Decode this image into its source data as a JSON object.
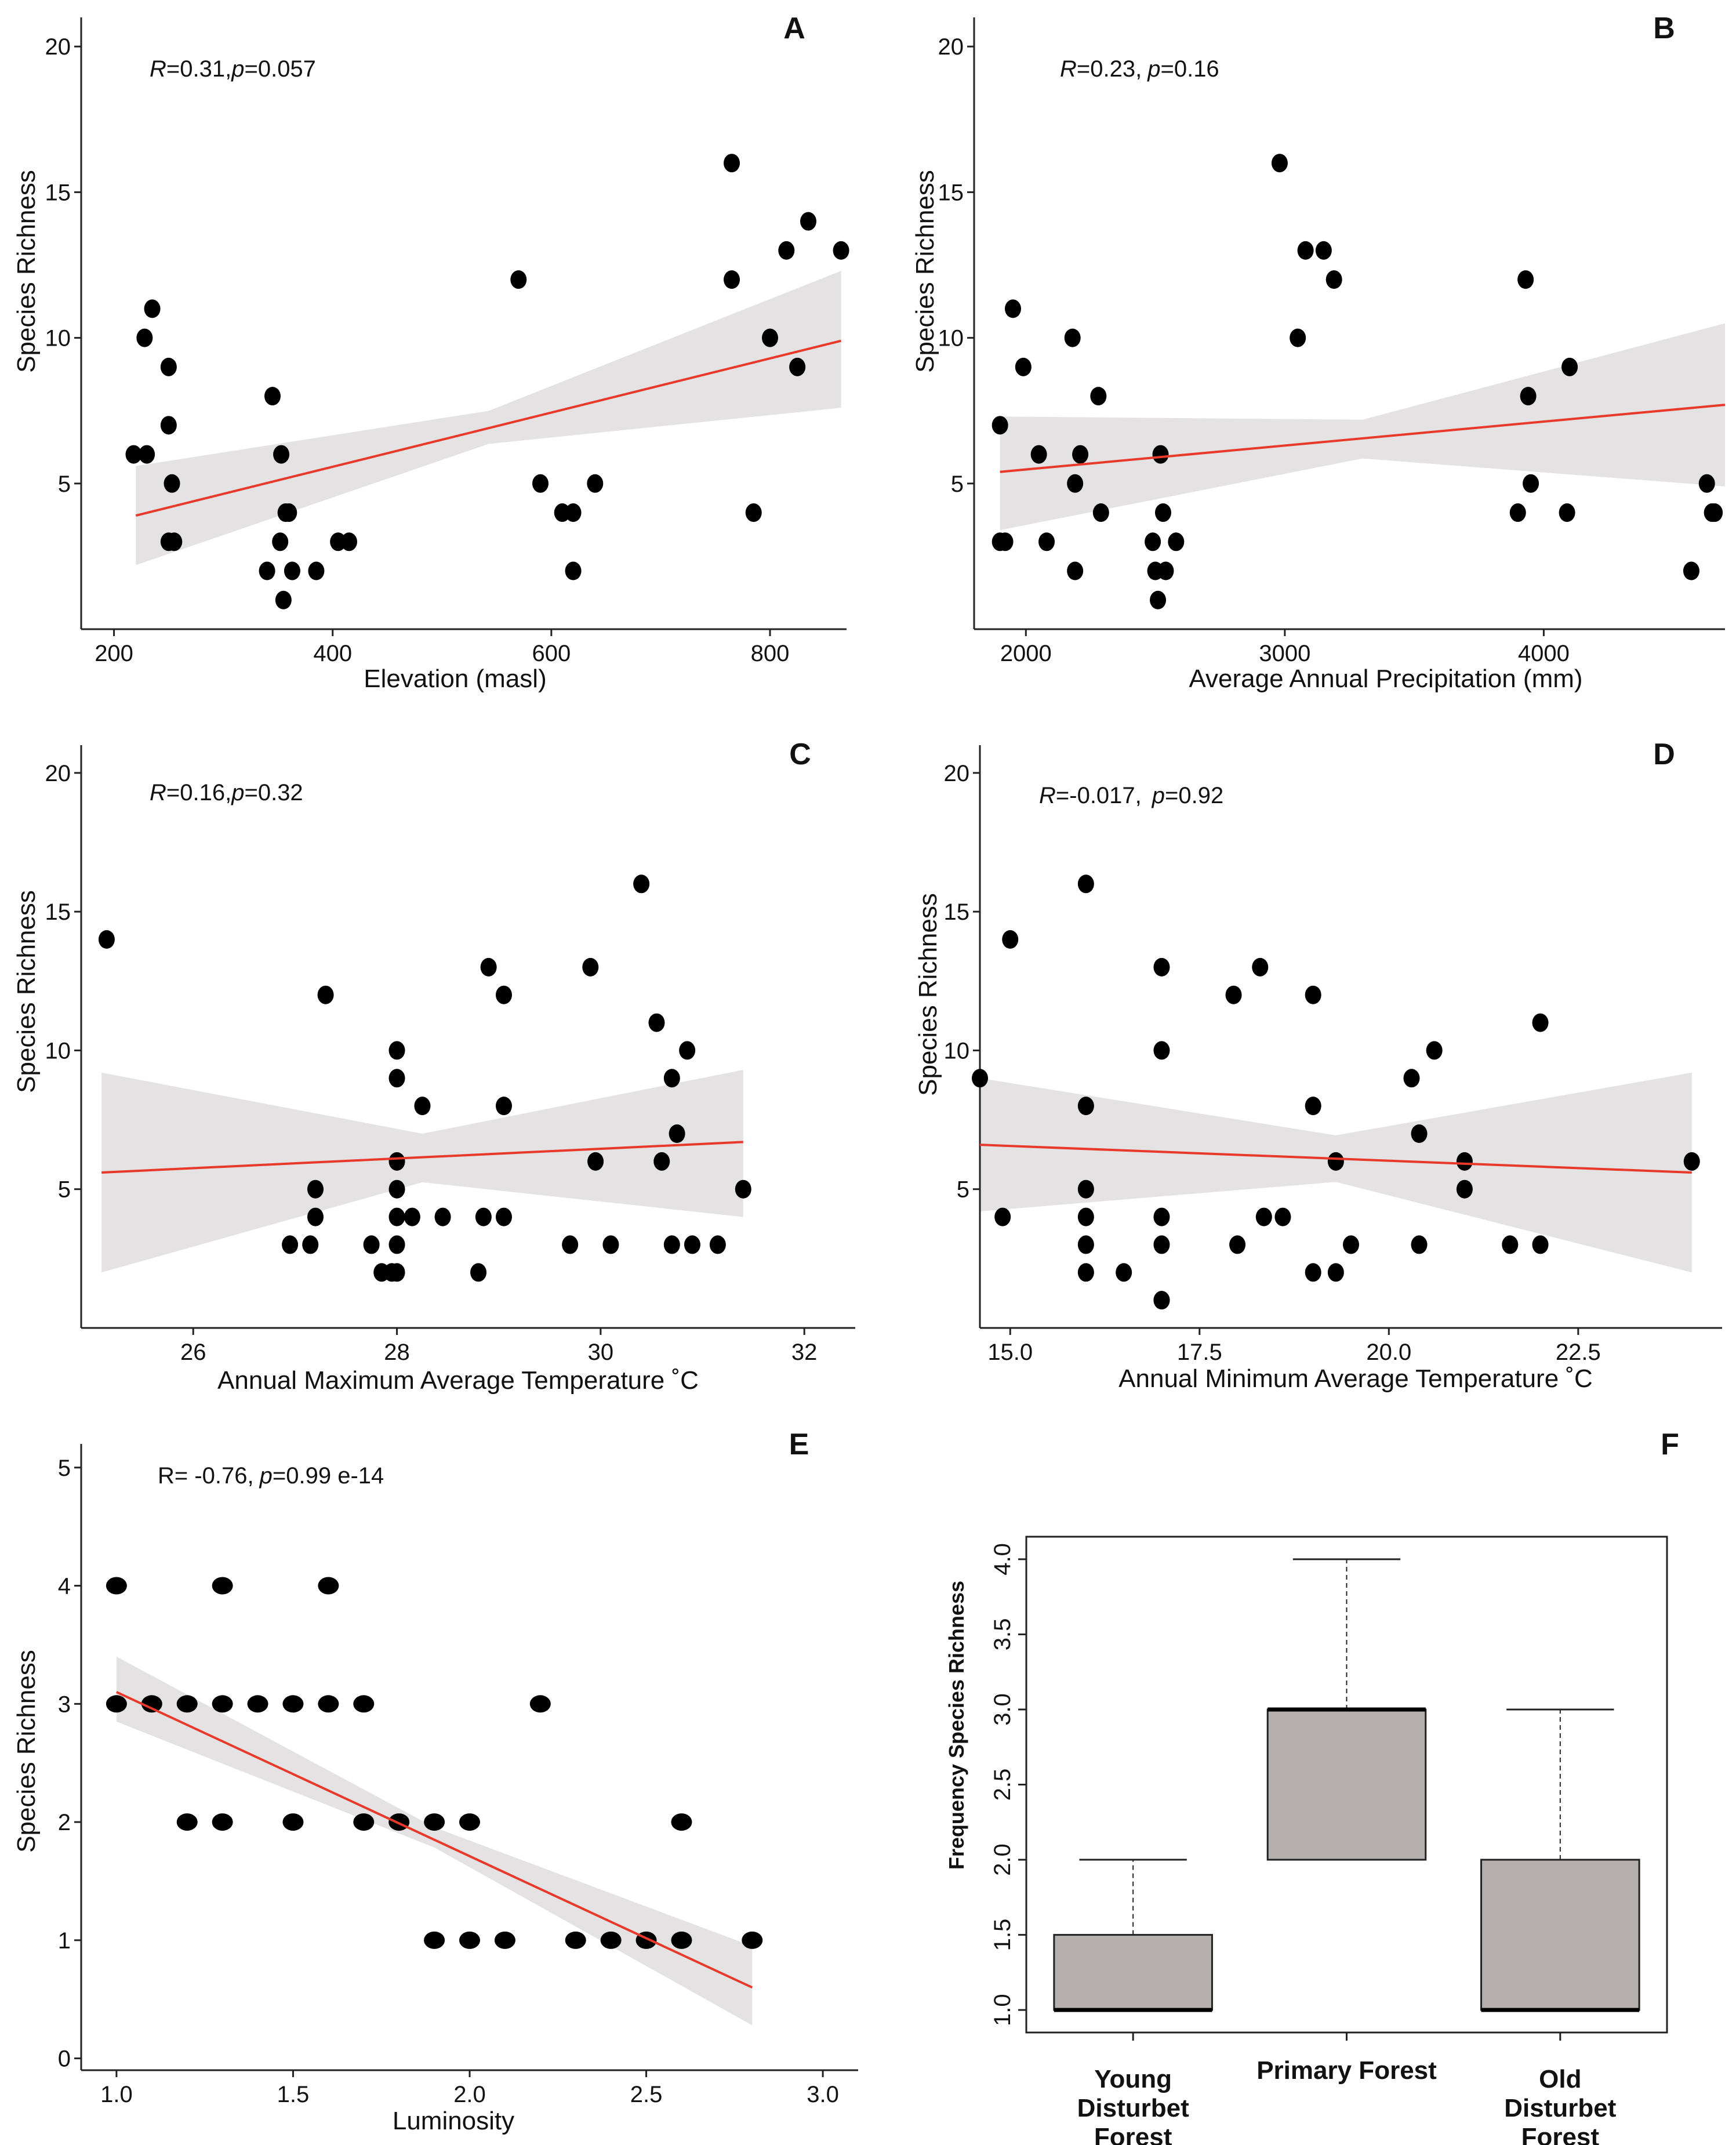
{
  "figure_title": "Species richness vs. environmental variables",
  "colors": {
    "points": "#000000",
    "fit": "#e8392a",
    "band": "#e4e2e2",
    "box_fill": "#b5b0ad",
    "axis": "#222222"
  },
  "chart_data": [
    {
      "id": "A",
      "type": "scatter",
      "letter": "A",
      "stat_r": "R",
      "stat_r_value": "=0.31,",
      "stat_p": "p",
      "stat_p_value": "=0.057",
      "xlabel": "Elevation (masl)",
      "ylabel": "Species Richness",
      "xlim": [
        170,
        870
      ],
      "ylim": [
        0,
        21
      ],
      "xticks": [
        200,
        400,
        600,
        800
      ],
      "yticks": [
        5,
        10,
        15,
        20
      ],
      "x": [
        218,
        230,
        228,
        235,
        250,
        250,
        253,
        250,
        255,
        345,
        353,
        357,
        352,
        360,
        363,
        340,
        355,
        385,
        405,
        415,
        570,
        590,
        610,
        620,
        620,
        640,
        765,
        765,
        785,
        800,
        815,
        835,
        825,
        865
      ],
      "y": [
        6,
        6,
        10,
        11,
        9,
        7,
        5,
        3,
        3,
        8,
        6,
        4,
        3,
        4,
        2,
        2,
        1,
        2,
        3,
        3,
        12,
        5,
        4,
        4,
        2,
        5,
        16,
        12,
        4,
        10,
        13,
        14,
        9,
        13
      ],
      "fit": {
        "x0": 220,
        "y0": 3.9,
        "x1": 865,
        "y1": 9.9,
        "lo0": 2.2,
        "hi0": 5.6,
        "lo1": 7.6,
        "hi1": 12.3
      }
    },
    {
      "id": "B",
      "type": "scatter",
      "letter": "B",
      "stat_r": "R",
      "stat_r_value": "=0.23,",
      "stat_p": "p",
      "stat_p_value": "=0.16",
      "xlabel": "Average Annual Precipitation (mm)",
      "ylabel": "Species Richness",
      "xlim": [
        1800,
        4700
      ],
      "ylim": [
        0,
        21
      ],
      "xticks": [
        2000,
        3000,
        4000
      ],
      "yticks": [
        5,
        10,
        15,
        20
      ],
      "x": [
        1900,
        1900,
        1920,
        1950,
        1990,
        2050,
        2080,
        2180,
        2190,
        2190,
        2210,
        2280,
        2290,
        2490,
        2500,
        2510,
        2520,
        2530,
        2540,
        2580,
        2980,
        3050,
        3080,
        3150,
        3190,
        3900,
        3930,
        3940,
        3950,
        4090,
        4100,
        4570,
        4630,
        4650,
        4660
      ],
      "y": [
        7,
        3,
        3,
        11,
        9,
        6,
        3,
        10,
        5,
        2,
        6,
        8,
        4,
        3,
        2,
        1,
        6,
        4,
        2,
        3,
        16,
        10,
        13,
        13,
        12,
        4,
        12,
        8,
        5,
        4,
        9,
        2,
        5,
        4,
        4
      ],
      "fit": {
        "x0": 1900,
        "y0": 5.4,
        "x1": 4700,
        "y1": 7.7,
        "lo0": 3.4,
        "hi0": 7.3,
        "lo1": 4.9,
        "hi1": 10.5
      }
    },
    {
      "id": "C",
      "type": "scatter",
      "letter": "C",
      "stat_r": "R",
      "stat_r_value": "=0.16,",
      "stat_p": "p",
      "stat_p_value": "=0.32",
      "xlabel": "Annual Maximum Average Temperature ˚C",
      "ylabel": "Species Richness",
      "xlim": [
        24.9,
        32.5
      ],
      "ylim": [
        0,
        21
      ],
      "xticks": [
        26,
        28,
        30,
        32
      ],
      "yticks": [
        5,
        10,
        15,
        20
      ],
      "x": [
        25.15,
        26.95,
        27.15,
        27.2,
        27.2,
        27.3,
        27.75,
        27.85,
        27.95,
        28.0,
        28.0,
        28.0,
        28.0,
        28.0,
        28.0,
        28.0,
        28.15,
        28.25,
        28.45,
        28.8,
        28.85,
        28.9,
        29.05,
        29.05,
        29.05,
        29.7,
        29.9,
        29.95,
        30.1,
        30.4,
        30.55,
        30.6,
        30.7,
        30.7,
        30.75,
        30.85,
        30.9,
        31.15,
        31.4
      ],
      "y": [
        14,
        3,
        3,
        5,
        4,
        12,
        3,
        2,
        2,
        10,
        9,
        6,
        5,
        4,
        3,
        2,
        4,
        8,
        4,
        2,
        4,
        13,
        12,
        8,
        4,
        3,
        13,
        6,
        3,
        16,
        11,
        6,
        3,
        9,
        7,
        10,
        3,
        3,
        5
      ],
      "fit": {
        "x0": 25.1,
        "y0": 5.6,
        "x1": 31.4,
        "y1": 6.7,
        "lo0": 2.0,
        "hi0": 9.2,
        "lo1": 4.0,
        "hi1": 9.3
      }
    },
    {
      "id": "D",
      "type": "scatter",
      "letter": "D",
      "stat_r": "R",
      "stat_r_value": "=-0.017,",
      "stat_p": "p",
      "stat_p_value": "=0.92",
      "xlabel": "Annual Minimum Average Temperature ˚C",
      "ylabel": "Species Richness",
      "xlim": [
        14.6,
        24.4
      ],
      "ylim": [
        0,
        21
      ],
      "xticks": [
        15.0,
        17.5,
        20.0,
        22.5
      ],
      "yticks": [
        5,
        10,
        15,
        20
      ],
      "x": [
        14.6,
        14.9,
        15.0,
        16.0,
        16.0,
        16.0,
        16.0,
        16.0,
        16.0,
        16.5,
        17.0,
        17.0,
        17.0,
        17.0,
        17.0,
        17.0,
        17.95,
        18.0,
        18.3,
        18.35,
        18.6,
        19.0,
        19.0,
        19.0,
        19.3,
        19.3,
        19.5,
        20.3,
        20.4,
        20.4,
        20.6,
        21.0,
        21.0,
        21.6,
        22.0,
        22.0,
        24.0
      ],
      "y": [
        9,
        4,
        14,
        16,
        8,
        5,
        4,
        3,
        2,
        2,
        13,
        10,
        4,
        3,
        1,
        1,
        12,
        3,
        13,
        4,
        4,
        12,
        8,
        2,
        6,
        2,
        3,
        9,
        7,
        3,
        10,
        6,
        5,
        3,
        11,
        3,
        6
      ],
      "fit": {
        "x0": 14.6,
        "y0": 6.6,
        "x1": 24.0,
        "y1": 5.6,
        "lo0": 4.2,
        "hi0": 9.0,
        "lo1": 2.0,
        "hi1": 9.2
      }
    },
    {
      "id": "E",
      "type": "scatter",
      "letter": "E",
      "stat_r": "R",
      "stat_r_value": "= -0.76,",
      "stat_p": "p",
      "stat_p_value": "=0.99 e-14",
      "xlabel": "Luminosity",
      "ylabel": "Species Richness",
      "xlim": [
        0.9,
        3.1
      ],
      "ylim": [
        -0.1,
        5.2
      ],
      "xticks": [
        1.0,
        1.5,
        2.0,
        2.5,
        3.0
      ],
      "yticks": [
        0,
        1,
        2,
        3,
        4,
        5
      ],
      "x": [
        1.0,
        1.0,
        1.1,
        1.2,
        1.2,
        1.3,
        1.3,
        1.3,
        1.4,
        1.5,
        1.5,
        1.6,
        1.6,
        1.7,
        1.7,
        1.8,
        1.9,
        1.9,
        2.0,
        2.0,
        2.1,
        2.2,
        2.3,
        2.4,
        2.5,
        2.6,
        2.6,
        2.8
      ],
      "y": [
        4,
        3,
        3,
        3,
        2,
        4,
        3,
        2,
        3,
        3,
        2,
        4,
        3,
        3,
        2,
        2,
        2,
        1,
        2,
        1,
        1,
        3,
        1,
        1,
        1,
        2,
        1,
        1
      ],
      "fit": {
        "x0": 1.0,
        "y0": 3.1,
        "x1": 2.8,
        "y1": 0.6,
        "lo0": 2.85,
        "hi0": 3.4,
        "lo1": 0.28,
        "hi1": 0.95
      }
    },
    {
      "id": "F",
      "type": "box",
      "letter": "F",
      "ylabel": "Frequency Species Richness",
      "ylim": [
        0.85,
        4.15
      ],
      "yticks": [
        1.0,
        1.5,
        2.0,
        2.5,
        3.0,
        3.5,
        4.0
      ],
      "categories": [
        {
          "line1": "Young",
          "line2": "Disturbet",
          "line3": "Forest",
          "min": 1.0,
          "q1": 1.0,
          "median": 1.0,
          "q3": 1.5,
          "max": 2.0
        },
        {
          "line1": "Primary Forest",
          "line2": "",
          "line3": "",
          "min": 2.0,
          "q1": 2.0,
          "median": 3.0,
          "q3": 3.0,
          "max": 4.0
        },
        {
          "line1": "Old",
          "line2": "Disturbet",
          "line3": "Forest",
          "min": 1.0,
          "q1": 1.0,
          "median": 1.0,
          "q3": 2.0,
          "max": 3.0
        }
      ]
    }
  ]
}
